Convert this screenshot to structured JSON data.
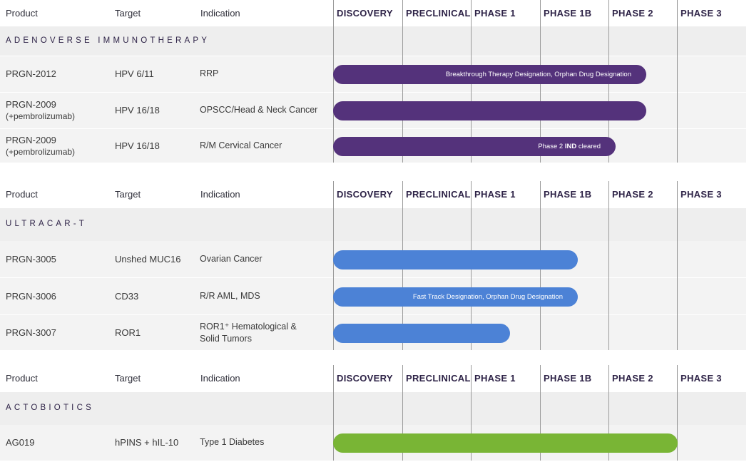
{
  "colors": {
    "band": "#eeeeee",
    "row": "#f3f3f3",
    "phase_text": "#2e2347",
    "bar_adenoverse": "#54327b",
    "bar_ultracar": "#4c82d6",
    "bar_actobiotics": "#79b535"
  },
  "headers": {
    "product": "Product",
    "target": "Target",
    "indication": "Indication",
    "phases": [
      "DISCOVERY",
      "PRECLINICAL",
      "PHASE 1",
      "PHASE 1B",
      "PHASE 2",
      "PHASE 3"
    ]
  },
  "sections": [
    {
      "title": "ADENOVERSE IMMUNOTHERAPY",
      "color": "#54327b",
      "rows": [
        {
          "product": "PRGN-2012",
          "product_sub": "",
          "target": "HPV 6/11",
          "indication": "RRP",
          "indication_sub": "",
          "progress_phases": 4.55,
          "note": "Breakthrough Therapy Designation, Orphan Drug Designation",
          "note_bold": "",
          "note_suffix": ""
        },
        {
          "product": "PRGN-2009",
          "product_sub": "(+pembrolizumab)",
          "target": "HPV 16/18",
          "indication": "OPSCC/Head & Neck Cancer",
          "indication_sub": "",
          "progress_phases": 4.55,
          "note": "",
          "note_bold": "",
          "note_suffix": ""
        },
        {
          "product": "PRGN-2009",
          "product_sub": "(+pembrolizumab)",
          "target": "HPV 16/18",
          "indication": "R/M Cervical Cancer",
          "indication_sub": "",
          "progress_phases": 4.1,
          "note": "Phase 2 ",
          "note_bold": "IND",
          "note_suffix": " cleared"
        }
      ]
    },
    {
      "title": "ULTRACAR-T",
      "color": "#4c82d6",
      "rows": [
        {
          "product": "PRGN-3005",
          "product_sub": "",
          "target": "Unshed MUC16",
          "indication": "Ovarian Cancer",
          "indication_sub": "",
          "progress_phases": 3.55,
          "note": "",
          "note_bold": "",
          "note_suffix": ""
        },
        {
          "product": "PRGN-3006",
          "product_sub": "",
          "target": "CD33",
          "indication": "R/R AML, MDS",
          "indication_sub": "",
          "progress_phases": 3.55,
          "note": "Fast Track Designation, Orphan Drug Designation",
          "note_bold": "",
          "note_suffix": ""
        },
        {
          "product": "PRGN-3007",
          "product_sub": "",
          "target": "ROR1",
          "indication": "ROR1⁺ Hematological &",
          "indication_sub": "Solid Tumors",
          "progress_phases": 2.57,
          "note": "",
          "note_bold": "",
          "note_suffix": ""
        }
      ]
    },
    {
      "title": "ACTOBIOTICS",
      "color": "#79b535",
      "rows": [
        {
          "product": "AG019",
          "product_sub": "",
          "target": "hPINS + hIL-10",
          "indication": "Type 1 Diabetes",
          "indication_sub": "",
          "progress_phases": 5.0,
          "note": "",
          "note_bold": "",
          "note_suffix": ""
        }
      ]
    }
  ]
}
